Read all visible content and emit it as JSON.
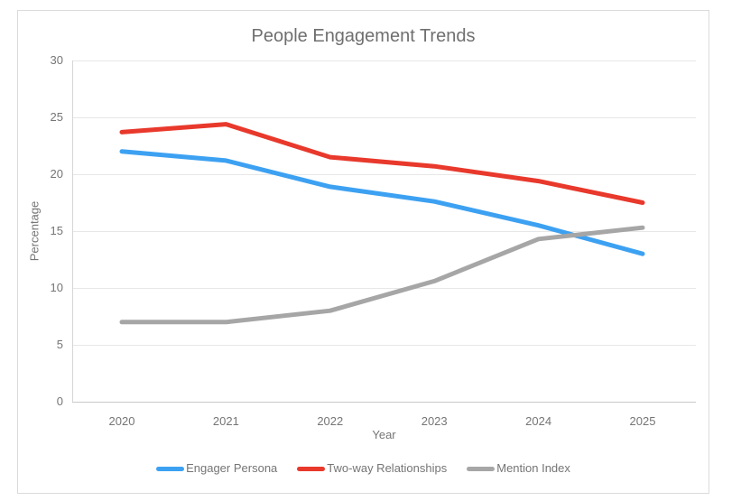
{
  "page": {
    "background": "#ffffff",
    "frame_border_color": "#dbdbdb"
  },
  "chart_data": {
    "type": "line",
    "title": "People Engagement Trends",
    "xlabel": "Year",
    "ylabel": "Percentage",
    "x": [
      "2020",
      "2021",
      "2022",
      "2023",
      "2024",
      "2025"
    ],
    "series": [
      {
        "name": "Engager Persona",
        "color": "#3DA1F2",
        "values": [
          22.0,
          21.2,
          18.9,
          17.6,
          15.5,
          13.0
        ]
      },
      {
        "name": "Two-way Relationships",
        "color": "#E8392C",
        "values": [
          23.7,
          24.4,
          21.5,
          20.7,
          19.4,
          17.5
        ]
      },
      {
        "name": "Mention Index",
        "color": "#A6A6A6",
        "values": [
          7.0,
          7.0,
          8.0,
          10.6,
          14.3,
          15.3
        ]
      }
    ],
    "ylim": [
      0,
      30
    ],
    "yticks": [
      0,
      5,
      10,
      15,
      20,
      25,
      30
    ],
    "grid": "horizontal",
    "legend_position": "bottom",
    "text_color": "#757575",
    "title_color": "#6f6f6f",
    "gridline_color": "#e7e7e7",
    "y_axis_line_color": "#d6d6d6",
    "x_axis_line_color": "#c9c9c9",
    "line_width": 5
  }
}
